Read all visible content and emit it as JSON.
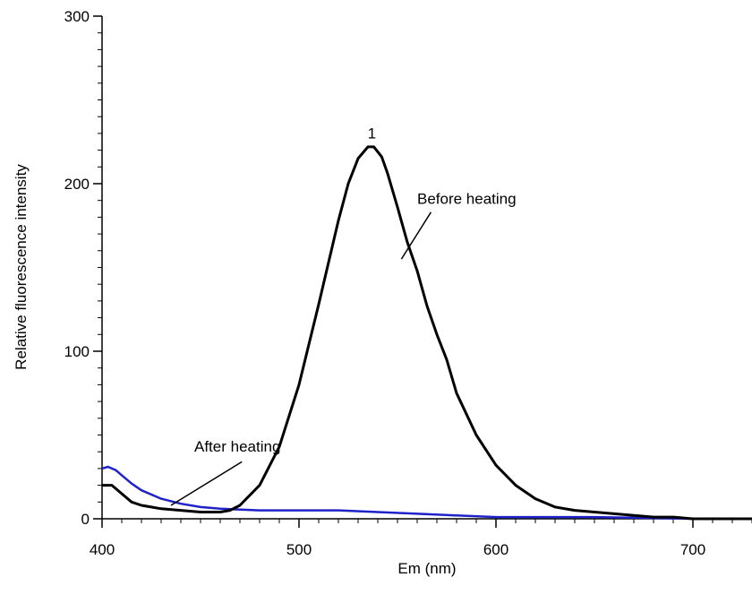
{
  "chart_data": {
    "type": "line",
    "xlabel": "Em (nm)",
    "ylabel": "Relative fluorescence intensity",
    "xlim": [
      400,
      750
    ],
    "ylim": [
      0,
      300
    ],
    "x_ticks": [
      "400",
      "500",
      "600",
      "700"
    ],
    "y_ticks": [
      "0",
      "100",
      "200",
      "300"
    ],
    "grid": false,
    "series": [
      {
        "name": "Before heating",
        "color": "#000000",
        "x": [
          400,
          405,
          410,
          415,
          420,
          425,
          430,
          440,
          450,
          460,
          465,
          470,
          480,
          490,
          500,
          510,
          520,
          525,
          530,
          535,
          538,
          542,
          545,
          550,
          555,
          560,
          565,
          570,
          575,
          580,
          590,
          600,
          610,
          620,
          630,
          640,
          650,
          660,
          670,
          680,
          690,
          700,
          720,
          750
        ],
        "y": [
          20,
          20,
          15,
          10,
          8,
          7,
          6,
          5,
          4,
          4,
          5,
          8,
          20,
          43,
          80,
          128,
          178,
          200,
          215,
          222,
          222,
          216,
          206,
          186,
          165,
          148,
          127,
          110,
          95,
          75,
          50,
          32,
          20,
          12,
          7,
          5,
          4,
          3,
          2,
          1,
          1,
          0,
          0,
          0
        ]
      },
      {
        "name": "After heating",
        "color": "#1f22c8",
        "x": [
          400,
          403,
          407,
          410,
          415,
          420,
          430,
          440,
          450,
          460,
          480,
          500,
          520,
          540,
          560,
          580,
          600,
          650,
          700,
          750
        ],
        "y": [
          30,
          31,
          29,
          26,
          21,
          17,
          12,
          9,
          7,
          6,
          5,
          5,
          5,
          4,
          3,
          2,
          1,
          1,
          0,
          0
        ]
      }
    ],
    "annotations": [
      {
        "text": "1",
        "x": 537,
        "y": 227
      },
      {
        "text": "Before heating",
        "text_x": 560,
        "text_y": 188,
        "arrow_from_x": 567,
        "arrow_from_y": 183,
        "arrow_to_x": 552,
        "arrow_to_y": 155
      },
      {
        "text": "After heating",
        "text_x": 505,
        "text_y": 40,
        "arrow_from_x": 521,
        "arrow_from_y": 34,
        "arrow_to_x": 500,
        "arrow_to_y": 8
      }
    ]
  }
}
